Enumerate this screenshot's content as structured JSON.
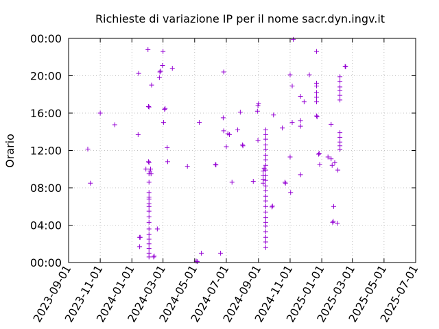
{
  "chart_data": {
    "type": "scatter",
    "title": "Richieste di variazione IP per il nome sacr.dyn.ingv.it",
    "xlabel": "",
    "ylabel": "Orario",
    "xlim": [
      "2023-09-01",
      "2025-07-01"
    ],
    "ylim": [
      0,
      24
    ],
    "x_ticks": [
      "2023-09-01",
      "2023-11-01",
      "2024-01-01",
      "2024-03-01",
      "2024-05-01",
      "2024-07-01",
      "2024-09-01",
      "2024-11-01",
      "2025-01-01",
      "2025-03-01",
      "2025-05-01",
      "2025-07-01"
    ],
    "y_ticks": [
      "00:00",
      "04:00",
      "08:00",
      "12:00",
      "16:00",
      "20:00",
      "00:00"
    ],
    "grid": true,
    "marker": "plus",
    "color": "#9400d3",
    "points": [
      [
        "2023-10-08",
        12.15
      ],
      [
        "2023-10-13",
        8.5
      ],
      [
        "2023-11-01",
        16.0
      ],
      [
        "2023-11-29",
        14.75
      ],
      [
        "2024-01-13",
        13.7
      ],
      [
        "2024-01-14",
        20.25
      ],
      [
        "2024-01-16",
        2.7
      ],
      [
        "2024-01-17",
        2.7
      ],
      [
        "2024-01-16",
        1.7
      ],
      [
        "2024-01-28",
        10.0
      ],
      [
        "2024-02-01",
        22.8
      ],
      [
        "2024-02-02",
        16.7
      ],
      [
        "2024-02-03",
        16.65
      ],
      [
        "2024-02-02",
        10.8
      ],
      [
        "2024-02-03",
        10.7
      ],
      [
        "2024-02-03",
        0.6
      ],
      [
        "2024-02-03",
        1.0
      ],
      [
        "2024-02-03",
        1.5
      ],
      [
        "2024-02-03",
        2.0
      ],
      [
        "2024-02-03",
        2.5
      ],
      [
        "2024-02-03",
        3.0
      ],
      [
        "2024-02-03",
        3.6
      ],
      [
        "2024-02-03",
        4.3
      ],
      [
        "2024-02-03",
        4.9
      ],
      [
        "2024-02-03",
        5.5
      ],
      [
        "2024-02-03",
        6.0
      ],
      [
        "2024-02-03",
        6.3
      ],
      [
        "2024-02-03",
        6.8
      ],
      [
        "2024-02-03",
        7.0
      ],
      [
        "2024-02-03",
        7.5
      ],
      [
        "2024-02-03",
        8.6
      ],
      [
        "2024-02-03",
        9.5
      ],
      [
        "2024-02-05",
        9.8
      ],
      [
        "2024-02-06",
        10.0
      ],
      [
        "2024-02-07",
        9.5
      ],
      [
        "2024-02-08",
        19.0
      ],
      [
        "2024-02-12",
        0.6
      ],
      [
        "2024-02-13",
        0.7
      ],
      [
        "2024-02-19",
        3.6
      ],
      [
        "2024-02-23",
        19.8
      ],
      [
        "2024-02-24",
        20.4
      ],
      [
        "2024-02-25",
        20.5
      ],
      [
        "2024-02-29",
        21.1
      ],
      [
        "2024-03-01",
        22.6
      ],
      [
        "2024-03-02",
        15.0
      ],
      [
        "2024-03-04",
        16.4
      ],
      [
        "2024-03-05",
        16.5
      ],
      [
        "2024-03-09",
        12.3
      ],
      [
        "2024-03-10",
        10.8
      ],
      [
        "2024-03-19",
        20.8
      ],
      [
        "2024-04-17",
        10.3
      ],
      [
        "2024-05-04",
        0.15
      ],
      [
        "2024-05-06",
        0.1
      ],
      [
        "2024-05-10",
        15.0
      ],
      [
        "2024-05-14",
        1.0
      ],
      [
        "2024-06-10",
        10.5
      ],
      [
        "2024-06-11",
        10.45
      ],
      [
        "2024-06-20",
        1.0
      ],
      [
        "2024-06-26",
        20.4
      ],
      [
        "2024-06-25",
        15.5
      ],
      [
        "2024-06-26",
        14.1
      ],
      [
        "2024-07-01",
        12.4
      ],
      [
        "2024-07-04",
        13.8
      ],
      [
        "2024-07-07",
        13.7
      ],
      [
        "2024-07-12",
        8.6
      ],
      [
        "2024-07-23",
        14.2
      ],
      [
        "2024-07-28",
        16.1
      ],
      [
        "2024-08-01",
        12.6
      ],
      [
        "2024-08-02",
        12.5
      ],
      [
        "2024-08-22",
        8.7
      ],
      [
        "2024-08-30",
        16.2
      ],
      [
        "2024-08-31",
        16.8
      ],
      [
        "2024-09-01",
        17.0
      ],
      [
        "2024-08-31",
        13.1
      ],
      [
        "2024-09-10",
        9.8
      ],
      [
        "2024-09-10",
        9.3
      ],
      [
        "2024-09-10",
        8.9
      ],
      [
        "2024-09-10",
        8.5
      ],
      [
        "2024-09-12",
        10.1
      ],
      [
        "2024-09-15",
        1.6
      ],
      [
        "2024-09-15",
        2.2
      ],
      [
        "2024-09-15",
        2.7
      ],
      [
        "2024-09-15",
        3.3
      ],
      [
        "2024-09-15",
        3.9
      ],
      [
        "2024-09-15",
        4.3
      ],
      [
        "2024-09-15",
        4.8
      ],
      [
        "2024-09-15",
        5.4
      ],
      [
        "2024-09-15",
        6.0
      ],
      [
        "2024-09-15",
        6.6
      ],
      [
        "2024-09-15",
        7.1
      ],
      [
        "2024-09-15",
        7.7
      ],
      [
        "2024-09-15",
        8.2
      ],
      [
        "2024-09-15",
        8.8
      ],
      [
        "2024-09-15",
        9.3
      ],
      [
        "2024-09-15",
        9.9
      ],
      [
        "2024-09-15",
        10.4
      ],
      [
        "2024-09-15",
        11.0
      ],
      [
        "2024-09-15",
        11.5
      ],
      [
        "2024-09-15",
        12.1
      ],
      [
        "2024-09-15",
        12.6
      ],
      [
        "2024-09-15",
        13.2
      ],
      [
        "2024-09-15",
        13.7
      ],
      [
        "2024-09-15",
        14.2
      ],
      [
        "2024-09-27",
        5.95
      ],
      [
        "2024-09-28",
        6.05
      ],
      [
        "2024-09-30",
        15.8
      ],
      [
        "2024-10-17",
        14.4
      ],
      [
        "2024-10-22",
        8.6
      ],
      [
        "2024-10-23",
        8.5
      ],
      [
        "2024-11-01",
        20.1
      ],
      [
        "2024-11-01",
        11.3
      ],
      [
        "2024-11-02",
        7.5
      ],
      [
        "2024-11-05",
        18.9
      ],
      [
        "2024-11-05",
        15.0
      ],
      [
        "2024-11-07",
        23.9
      ],
      [
        "2024-11-21",
        17.8
      ],
      [
        "2024-11-21",
        15.2
      ],
      [
        "2024-11-21",
        14.6
      ],
      [
        "2024-11-21",
        9.4
      ],
      [
        "2024-11-28",
        17.2
      ],
      [
        "2024-12-08",
        20.1
      ],
      [
        "2024-12-22",
        22.6
      ],
      [
        "2024-12-22",
        19.2
      ],
      [
        "2024-12-22",
        18.9
      ],
      [
        "2024-12-22",
        18.2
      ],
      [
        "2024-12-22",
        17.7
      ],
      [
        "2024-12-22",
        17.2
      ],
      [
        "2024-12-22",
        15.7
      ],
      [
        "2024-12-23",
        15.6
      ],
      [
        "2024-12-26",
        11.6
      ],
      [
        "2024-12-27",
        11.7
      ],
      [
        "2024-12-28",
        10.5
      ],
      [
        "2025-01-13",
        11.3
      ],
      [
        "2025-01-19",
        14.8
      ],
      [
        "2025-01-19",
        11.1
      ],
      [
        "2025-01-21",
        10.4
      ],
      [
        "2025-01-22",
        4.3
      ],
      [
        "2025-01-23",
        4.4
      ],
      [
        "2025-01-24",
        6.0
      ],
      [
        "2025-01-26",
        10.7
      ],
      [
        "2025-01-31",
        4.2
      ],
      [
        "2025-02-01",
        9.9
      ],
      [
        "2025-02-05",
        19.9
      ],
      [
        "2025-02-05",
        19.4
      ],
      [
        "2025-02-05",
        18.8
      ],
      [
        "2025-02-05",
        18.4
      ],
      [
        "2025-02-05",
        17.9
      ],
      [
        "2025-02-05",
        17.4
      ],
      [
        "2025-02-05",
        13.9
      ],
      [
        "2025-02-05",
        13.4
      ],
      [
        "2025-02-05",
        12.9
      ],
      [
        "2025-02-05",
        12.5
      ],
      [
        "2025-02-05",
        12.1
      ],
      [
        "2025-02-15",
        21.0
      ],
      [
        "2025-02-16",
        20.95
      ]
    ]
  }
}
